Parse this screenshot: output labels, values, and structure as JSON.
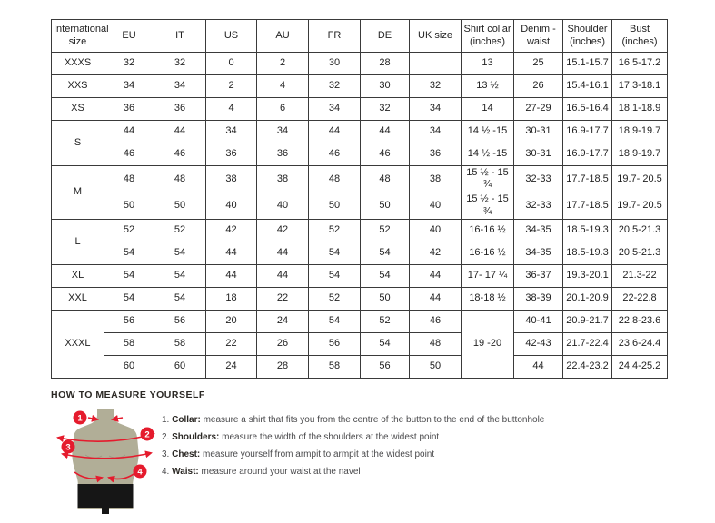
{
  "table": {
    "headers": [
      "International size",
      "EU",
      "IT",
      "US",
      "AU",
      "FR",
      "DE",
      "UK size",
      "Shirt collar (inches)",
      "Denim - waist",
      "Shoulder (inches)",
      "Bust (inches)"
    ],
    "rows": [
      [
        {
          "text": "XXXS"
        },
        "32",
        "32",
        "0",
        "2",
        "30",
        "28",
        "",
        "13",
        "25",
        "15.1-15.7",
        "16.5-17.2"
      ],
      [
        {
          "text": "XXS"
        },
        "34",
        "34",
        "2",
        "4",
        "32",
        "30",
        "32",
        "13 ½",
        "26",
        "15.4-16.1",
        "17.3-18.1"
      ],
      [
        {
          "text": "XS"
        },
        "36",
        "36",
        "4",
        "6",
        "34",
        "32",
        "34",
        "14",
        "27-29",
        "16.5-16.4",
        "18.1-18.9"
      ],
      [
        {
          "text": "S",
          "rowspan": 2
        },
        "44",
        "44",
        "34",
        "34",
        "44",
        "44",
        "34",
        "14 ½ -15",
        "30-31",
        "16.9-17.7",
        "18.9-19.7"
      ],
      [
        "46",
        "46",
        "36",
        "36",
        "46",
        "46",
        "36",
        "14 ½ -15",
        "30-31",
        "16.9-17.7",
        "18.9-19.7"
      ],
      [
        {
          "text": "M",
          "rowspan": 2
        },
        "48",
        "48",
        "38",
        "38",
        "48",
        "48",
        "38",
        "15 ½ - 15 ¾",
        "32-33",
        "17.7-18.5",
        "19.7- 20.5"
      ],
      [
        "50",
        "50",
        "40",
        "40",
        "50",
        "50",
        "40",
        "15 ½ - 15 ¾",
        "32-33",
        "17.7-18.5",
        "19.7- 20.5"
      ],
      [
        {
          "text": "L",
          "rowspan": 2
        },
        "52",
        "52",
        "42",
        "42",
        "52",
        "52",
        "40",
        "16-16 ½",
        "34-35",
        "18.5-19.3",
        "20.5-21.3"
      ],
      [
        "54",
        "54",
        "44",
        "44",
        "54",
        "54",
        "42",
        "16-16 ½",
        "34-35",
        "18.5-19.3",
        "20.5-21.3"
      ],
      [
        {
          "text": "XL"
        },
        "54",
        "54",
        "44",
        "44",
        "54",
        "54",
        "44",
        "17- 17 ¼",
        "36-37",
        "19.3-20.1",
        "21.3-22"
      ],
      [
        {
          "text": "XXL"
        },
        "54",
        "54",
        "18",
        "22",
        "52",
        "50",
        "44",
        "18-18 ½",
        "38-39",
        "20.1-20.9",
        "22-22.8"
      ],
      [
        {
          "text": "XXXL",
          "rowspan": 3
        },
        "56",
        "56",
        "20",
        "24",
        "54",
        "52",
        "46",
        {
          "text": "19 -20",
          "rowspan": 3
        },
        "40-41",
        "20.9-21.7",
        "22.8-23.6"
      ],
      [
        "58",
        "58",
        "22",
        "26",
        "56",
        "54",
        "48",
        "42-43",
        "21.7-22.4",
        "23.6-24.4"
      ],
      [
        "60",
        "60",
        "24",
        "28",
        "58",
        "56",
        "50",
        "44",
        "22.4-23.2",
        "24.4-25.2"
      ]
    ]
  },
  "measure": {
    "title": "HOW TO MEASURE YOURSELF",
    "steps": [
      {
        "num": "1.",
        "label": "Collar:",
        "desc": "measure a shirt that fits you from the centre of the button to the end of the buttonhole"
      },
      {
        "num": "2.",
        "label": "Shoulders:",
        "desc": "measure the width of the shoulders at the widest point"
      },
      {
        "num": "3.",
        "label": "Chest:",
        "desc": "measure yourself from armpit to armpit at the widest point"
      },
      {
        "num": "4.",
        "label": "Waist:",
        "desc": "measure around your waist at the navel"
      }
    ]
  },
  "figure": {
    "badges": [
      "1",
      "2",
      "3",
      "4"
    ]
  },
  "colors": {
    "accent_red": "#e51b2d",
    "torso": "#b1ae97",
    "shorts": "#161616",
    "border": "#3a3a3a"
  }
}
